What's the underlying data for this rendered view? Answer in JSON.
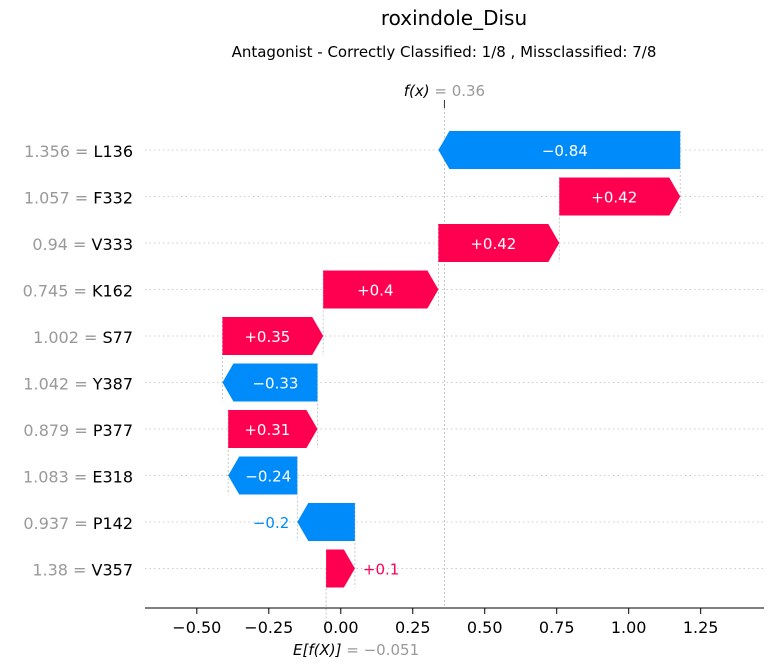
{
  "chart_data": {
    "type": "waterfall",
    "title": "roxindole_Disu",
    "subtitle": "Antagonist - Correctly Classified: 1/8 , Missclassified: 7/8",
    "base_value": -0.051,
    "base_label_prefix": "E[f(X)]",
    "base_label_value": "= −0.051",
    "output_value": 0.36,
    "output_label_prefix": "f(x)",
    "output_label_value": "= 0.36",
    "xlim": [
      -0.68,
      1.47
    ],
    "xticks": [
      -0.5,
      -0.25,
      0.0,
      0.25,
      0.5,
      0.75,
      1.0,
      1.25
    ],
    "xtick_labels": [
      "−0.50",
      "−0.25",
      "0.00",
      "0.25",
      "0.50",
      "0.75",
      "1.00",
      "1.25"
    ],
    "features": [
      {
        "value": "1.356",
        "name": "L136",
        "contribution": -0.84,
        "label": "−0.84"
      },
      {
        "value": "1.057",
        "name": "F332",
        "contribution": 0.42,
        "label": "+0.42"
      },
      {
        "value": "0.94",
        "name": "V333",
        "contribution": 0.42,
        "label": "+0.42"
      },
      {
        "value": "0.745",
        "name": "K162",
        "contribution": 0.4,
        "label": "+0.4"
      },
      {
        "value": "1.002",
        "name": "S77",
        "contribution": 0.35,
        "label": "+0.35"
      },
      {
        "value": "1.042",
        "name": "Y387",
        "contribution": -0.33,
        "label": "−0.33"
      },
      {
        "value": "0.879",
        "name": "P377",
        "contribution": 0.31,
        "label": "+0.31"
      },
      {
        "value": "1.083",
        "name": "E318",
        "contribution": -0.24,
        "label": "−0.24"
      },
      {
        "value": "0.937",
        "name": "P142",
        "contribution": -0.2,
        "label": "−0.2"
      },
      {
        "value": "1.38",
        "name": "V357",
        "contribution": 0.1,
        "label": "+0.1"
      }
    ],
    "colors": {
      "positive": "#ff0051",
      "negative": "#008bfb",
      "gridline": "#cccccc",
      "annotation_grey": "#999999"
    }
  }
}
